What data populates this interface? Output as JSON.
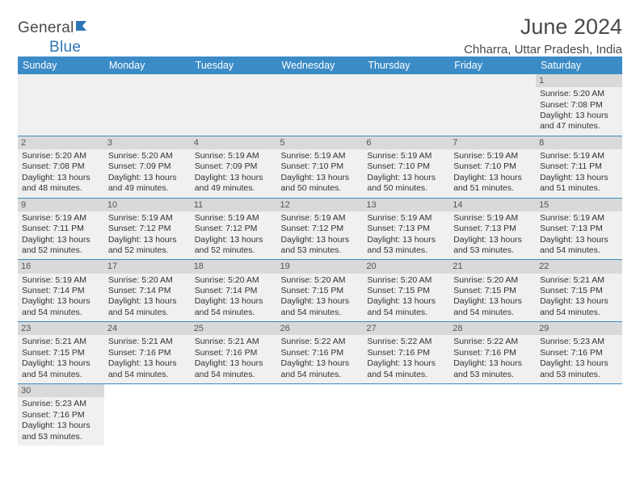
{
  "logo": {
    "part1": "General",
    "part2": "Blue"
  },
  "title": "June 2024",
  "subtitle": "Chharra, Uttar Pradesh, India",
  "colors": {
    "header_bg": "#3b8bc6",
    "header_fg": "#ffffff",
    "daynum_bg": "#d9d9d9",
    "cell_bg": "#f0f0f0",
    "border": "#3b8bc6",
    "logo_blue": "#2e75b6",
    "text": "#333333"
  },
  "weekdays": [
    "Sunday",
    "Monday",
    "Tuesday",
    "Wednesday",
    "Thursday",
    "Friday",
    "Saturday"
  ],
  "weeks": [
    [
      null,
      null,
      null,
      null,
      null,
      null,
      {
        "d": "1",
        "sr": "5:20 AM",
        "ss": "7:08 PM",
        "dl": "13 hours and 47 minutes."
      }
    ],
    [
      {
        "d": "2",
        "sr": "5:20 AM",
        "ss": "7:08 PM",
        "dl": "13 hours and 48 minutes."
      },
      {
        "d": "3",
        "sr": "5:20 AM",
        "ss": "7:09 PM",
        "dl": "13 hours and 49 minutes."
      },
      {
        "d": "4",
        "sr": "5:19 AM",
        "ss": "7:09 PM",
        "dl": "13 hours and 49 minutes."
      },
      {
        "d": "5",
        "sr": "5:19 AM",
        "ss": "7:10 PM",
        "dl": "13 hours and 50 minutes."
      },
      {
        "d": "6",
        "sr": "5:19 AM",
        "ss": "7:10 PM",
        "dl": "13 hours and 50 minutes."
      },
      {
        "d": "7",
        "sr": "5:19 AM",
        "ss": "7:10 PM",
        "dl": "13 hours and 51 minutes."
      },
      {
        "d": "8",
        "sr": "5:19 AM",
        "ss": "7:11 PM",
        "dl": "13 hours and 51 minutes."
      }
    ],
    [
      {
        "d": "9",
        "sr": "5:19 AM",
        "ss": "7:11 PM",
        "dl": "13 hours and 52 minutes."
      },
      {
        "d": "10",
        "sr": "5:19 AM",
        "ss": "7:12 PM",
        "dl": "13 hours and 52 minutes."
      },
      {
        "d": "11",
        "sr": "5:19 AM",
        "ss": "7:12 PM",
        "dl": "13 hours and 52 minutes."
      },
      {
        "d": "12",
        "sr": "5:19 AM",
        "ss": "7:12 PM",
        "dl": "13 hours and 53 minutes."
      },
      {
        "d": "13",
        "sr": "5:19 AM",
        "ss": "7:13 PM",
        "dl": "13 hours and 53 minutes."
      },
      {
        "d": "14",
        "sr": "5:19 AM",
        "ss": "7:13 PM",
        "dl": "13 hours and 53 minutes."
      },
      {
        "d": "15",
        "sr": "5:19 AM",
        "ss": "7:13 PM",
        "dl": "13 hours and 54 minutes."
      }
    ],
    [
      {
        "d": "16",
        "sr": "5:19 AM",
        "ss": "7:14 PM",
        "dl": "13 hours and 54 minutes."
      },
      {
        "d": "17",
        "sr": "5:20 AM",
        "ss": "7:14 PM",
        "dl": "13 hours and 54 minutes."
      },
      {
        "d": "18",
        "sr": "5:20 AM",
        "ss": "7:14 PM",
        "dl": "13 hours and 54 minutes."
      },
      {
        "d": "19",
        "sr": "5:20 AM",
        "ss": "7:15 PM",
        "dl": "13 hours and 54 minutes."
      },
      {
        "d": "20",
        "sr": "5:20 AM",
        "ss": "7:15 PM",
        "dl": "13 hours and 54 minutes."
      },
      {
        "d": "21",
        "sr": "5:20 AM",
        "ss": "7:15 PM",
        "dl": "13 hours and 54 minutes."
      },
      {
        "d": "22",
        "sr": "5:21 AM",
        "ss": "7:15 PM",
        "dl": "13 hours and 54 minutes."
      }
    ],
    [
      {
        "d": "23",
        "sr": "5:21 AM",
        "ss": "7:15 PM",
        "dl": "13 hours and 54 minutes."
      },
      {
        "d": "24",
        "sr": "5:21 AM",
        "ss": "7:16 PM",
        "dl": "13 hours and 54 minutes."
      },
      {
        "d": "25",
        "sr": "5:21 AM",
        "ss": "7:16 PM",
        "dl": "13 hours and 54 minutes."
      },
      {
        "d": "26",
        "sr": "5:22 AM",
        "ss": "7:16 PM",
        "dl": "13 hours and 54 minutes."
      },
      {
        "d": "27",
        "sr": "5:22 AM",
        "ss": "7:16 PM",
        "dl": "13 hours and 54 minutes."
      },
      {
        "d": "28",
        "sr": "5:22 AM",
        "ss": "7:16 PM",
        "dl": "13 hours and 53 minutes."
      },
      {
        "d": "29",
        "sr": "5:23 AM",
        "ss": "7:16 PM",
        "dl": "13 hours and 53 minutes."
      }
    ],
    [
      {
        "d": "30",
        "sr": "5:23 AM",
        "ss": "7:16 PM",
        "dl": "13 hours and 53 minutes."
      },
      null,
      null,
      null,
      null,
      null,
      null
    ]
  ],
  "labels": {
    "sunrise": "Sunrise: ",
    "sunset": "Sunset: ",
    "daylight": "Daylight: "
  }
}
